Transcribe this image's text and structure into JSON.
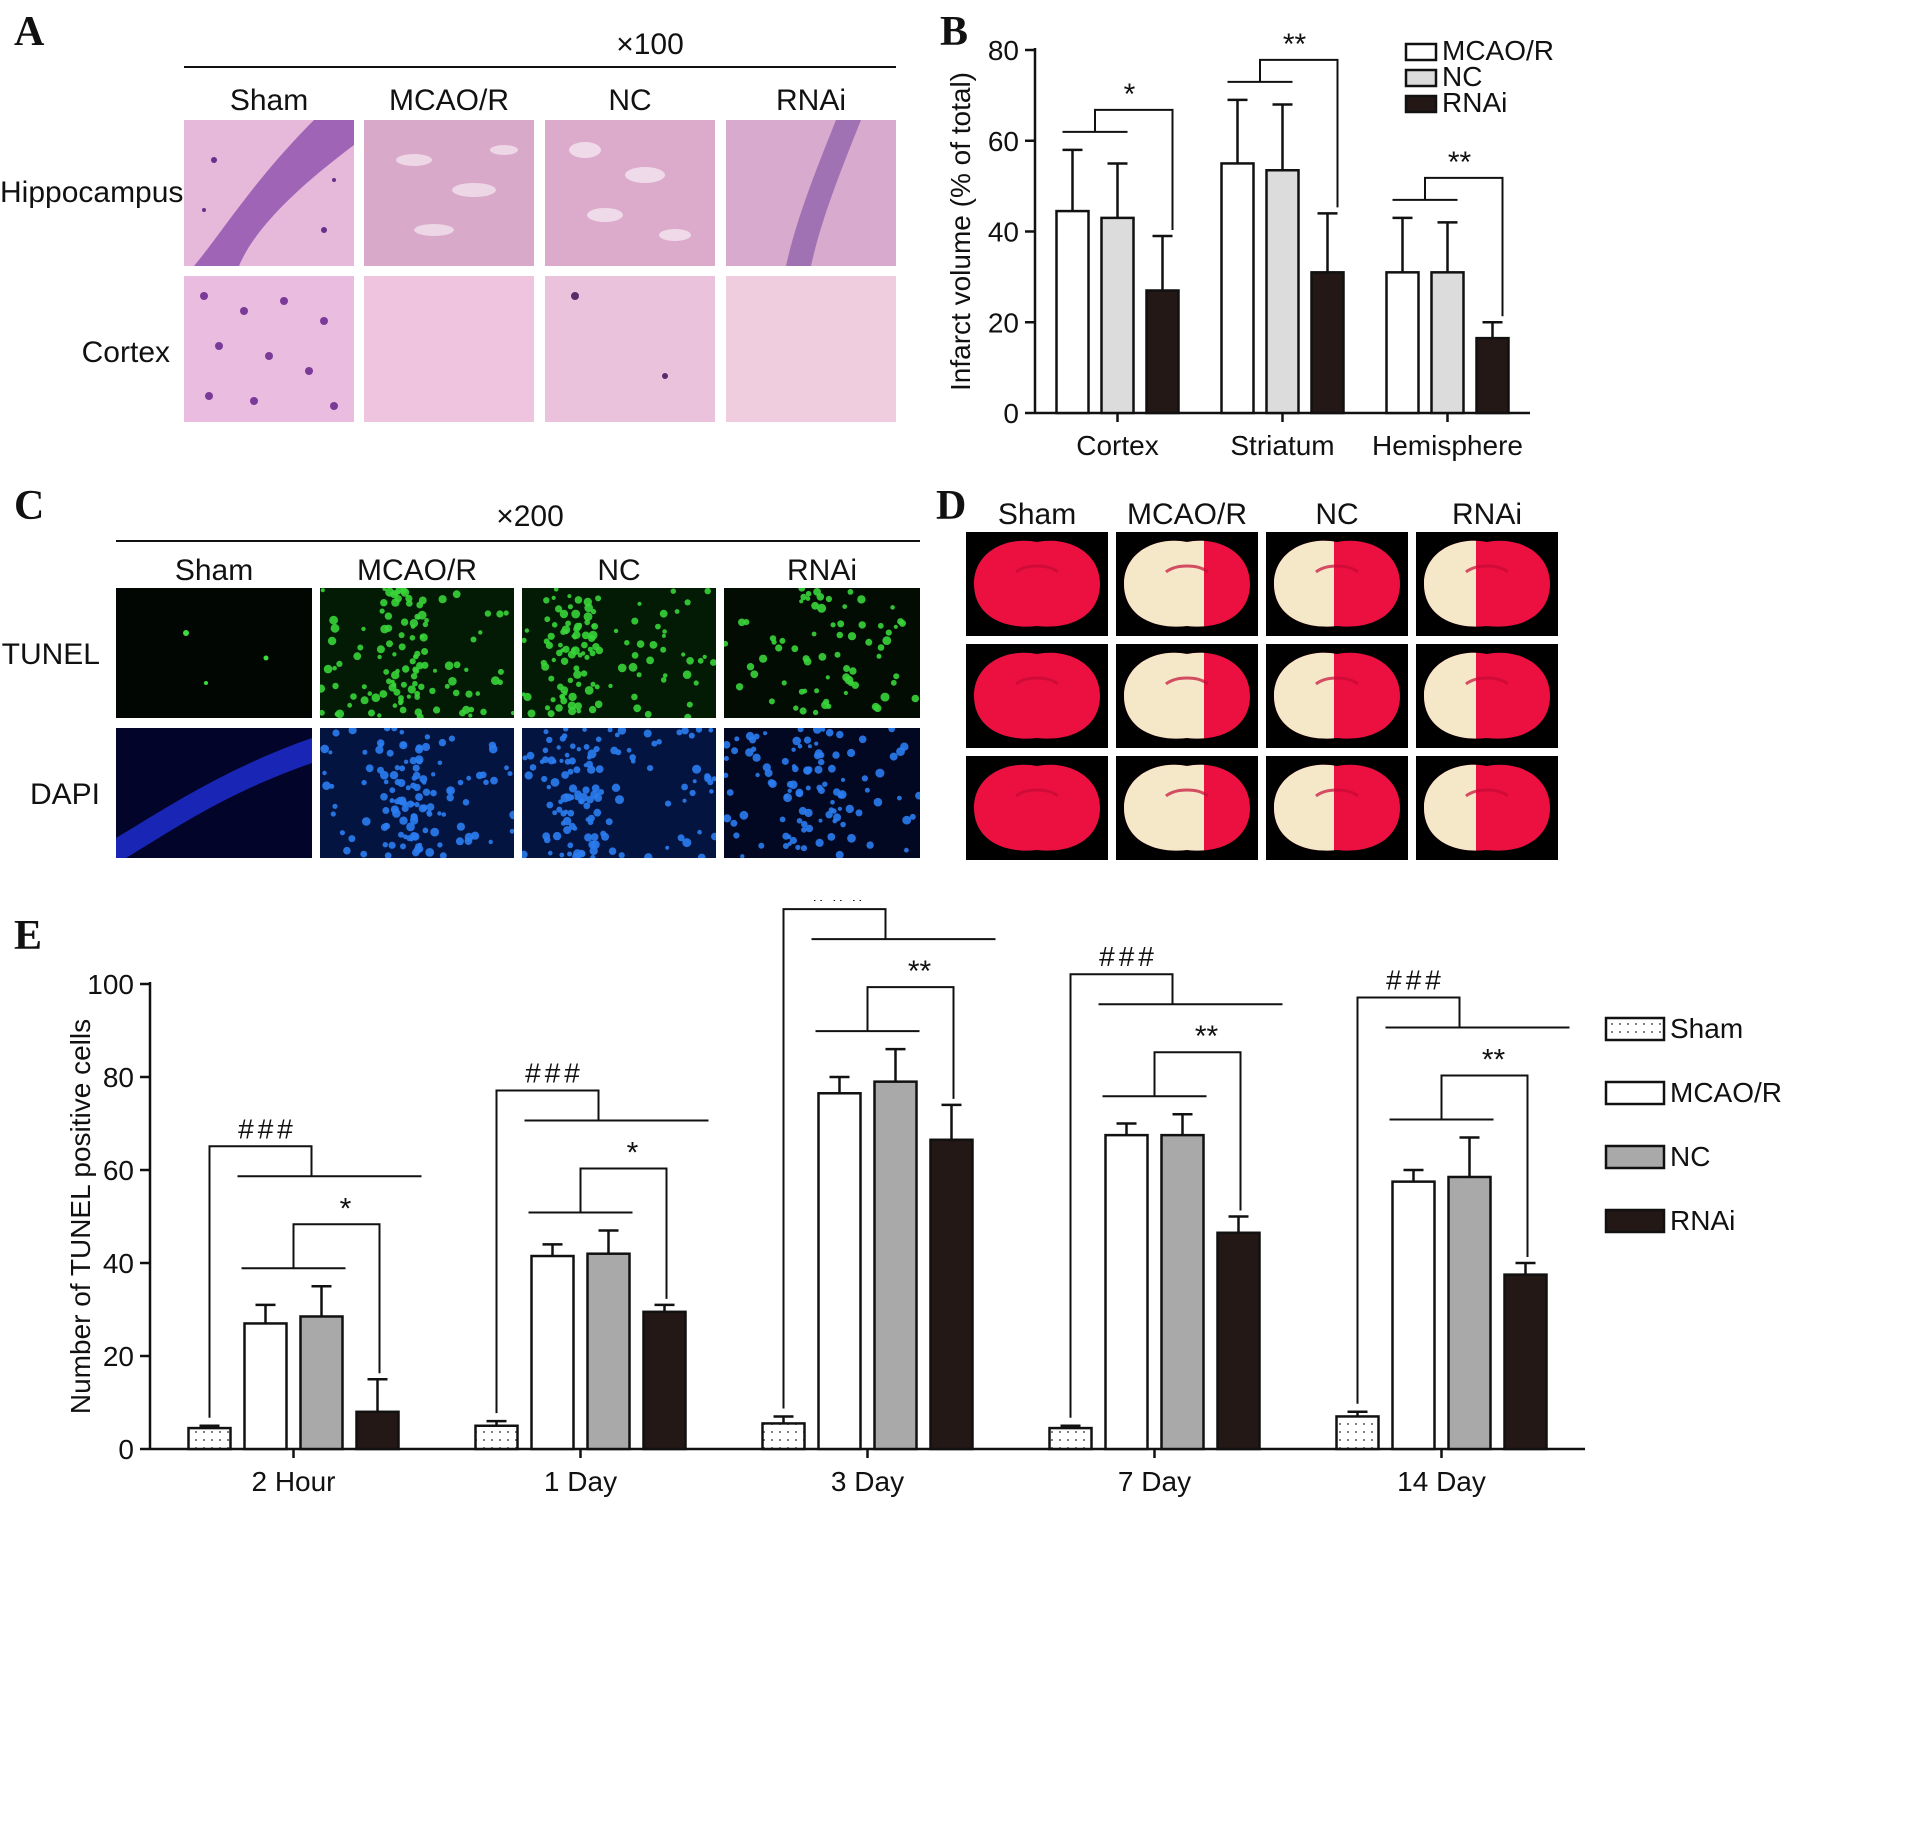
{
  "panelA": {
    "letter": "A",
    "magnification": "×100",
    "columns": [
      "Sham",
      "MCAO/R",
      "NC",
      "RNAi"
    ],
    "rows": [
      "Hippocampus",
      "Cortex"
    ]
  },
  "panelC": {
    "letter": "C",
    "magnification": "×200",
    "columns": [
      "Sham",
      "MCAO/R",
      "NC",
      "RNAi"
    ],
    "rows": [
      "TUNEL",
      "DAPI"
    ]
  },
  "panelD": {
    "letter": "D",
    "columns": [
      "Sham",
      "MCAO/R",
      "NC",
      "RNAi"
    ]
  },
  "colors": {
    "he_stain": "#e8b6d8",
    "he_dark": "#8a4aa8",
    "tunel": "#39d43a",
    "dapi": "#2a7cf0",
    "ttc_red": "#ec1040",
    "infarct": "#f4e8c8",
    "bar_white": "#ffffff",
    "bar_gray": "#a9a9a9",
    "bar_light": "#dcdcdc",
    "bar_black": "#231815"
  },
  "chart_data": [
    {
      "panel": "B",
      "type": "bar",
      "ylabel": "Infarct volume (% of total)",
      "ylim": [
        0,
        80
      ],
      "yticks": [
        0,
        20,
        40,
        60,
        80
      ],
      "categories": [
        "Cortex",
        "Striatum",
        "Hemisphere"
      ],
      "series": [
        {
          "name": "MCAO/R",
          "color": "#ffffff",
          "values": [
            44.5,
            55,
            31
          ],
          "errors": [
            13.5,
            14,
            12
          ]
        },
        {
          "name": "NC",
          "color": "#dcdcdc",
          "values": [
            43,
            53.5,
            31
          ],
          "errors": [
            12,
            14.5,
            11
          ]
        },
        {
          "name": "RNAi",
          "color": "#231815",
          "values": [
            27,
            31,
            16.5
          ],
          "errors": [
            12,
            13,
            3.5
          ]
        }
      ],
      "significance": [
        "*",
        "**",
        "**"
      ],
      "legend": "top-right"
    },
    {
      "panel": "E",
      "type": "bar",
      "ylabel": "Number of TUNEL positive cells",
      "ylim": [
        0,
        100
      ],
      "yticks": [
        0,
        20,
        40,
        60,
        80,
        100
      ],
      "categories": [
        "2 Hour",
        "1 Day",
        "3 Day",
        "7 Day",
        "14 Day"
      ],
      "series": [
        {
          "name": "Sham",
          "color": "#ffffff",
          "pattern": "dots",
          "values": [
            4.5,
            5,
            5.5,
            4.5,
            7
          ],
          "errors": [
            0.5,
            1,
            1.5,
            0.5,
            1
          ]
        },
        {
          "name": "MCAO/R",
          "color": "#ffffff",
          "values": [
            27,
            41.5,
            76.5,
            67.5,
            57.5
          ],
          "errors": [
            4,
            2.5,
            3.5,
            2.5,
            2.5
          ]
        },
        {
          "name": "NC",
          "color": "#a9a9a9",
          "values": [
            28.5,
            42,
            79,
            67.5,
            58.5
          ],
          "errors": [
            6.5,
            5,
            7,
            4.5,
            8.5
          ]
        },
        {
          "name": "RNAi",
          "color": "#231815",
          "values": [
            8,
            29.5,
            66.5,
            46.5,
            37.5
          ],
          "errors": [
            7,
            1.5,
            7.5,
            3.5,
            2.5
          ]
        }
      ],
      "hash_marks": [
        "###",
        "###",
        "###",
        "###",
        "###"
      ],
      "significance": [
        "*",
        "*",
        "**",
        "**",
        "**"
      ],
      "legend": "right"
    }
  ]
}
